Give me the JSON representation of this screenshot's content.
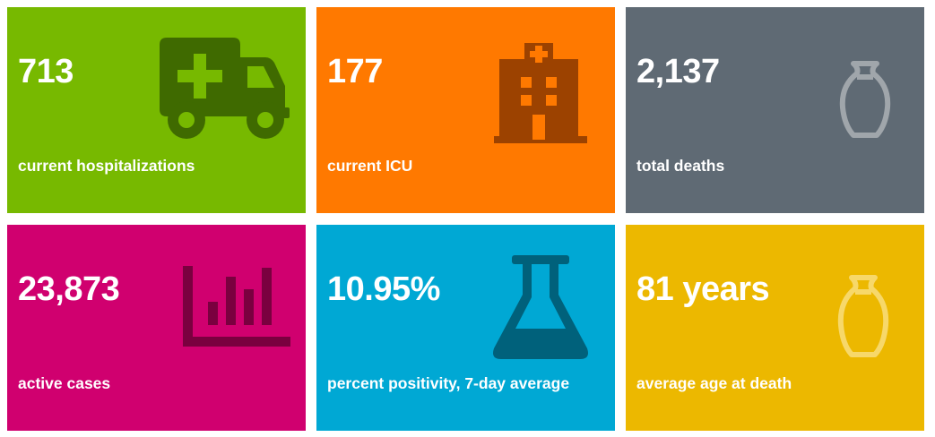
{
  "tiles": [
    {
      "value": "713",
      "label": "current hospitalizations",
      "color": "#77b900",
      "icon": "ambulance-icon",
      "icon_color": "#3f6a00"
    },
    {
      "value": "177",
      "label": "current ICU",
      "color": "#ff7900",
      "icon": "hospital-icon",
      "icon_color": "#9c4200"
    },
    {
      "value": "2,137",
      "label": "total deaths",
      "color": "#5f6a74",
      "icon": "urn-icon",
      "icon_color": "#a0a6ab"
    },
    {
      "value": "23,873",
      "label": "active cases",
      "color": "#d0006f",
      "icon": "bar-chart-icon",
      "icon_color": "#7a003f"
    },
    {
      "value": "10.95%",
      "label": "percent positivity, 7-day average",
      "color": "#00a8d4",
      "icon": "flask-icon",
      "icon_color": "#00617b"
    },
    {
      "value": "81 years",
      "label": "average age at death",
      "color": "#ecb800",
      "icon": "urn-icon",
      "icon_color": "#f7d86a"
    }
  ]
}
